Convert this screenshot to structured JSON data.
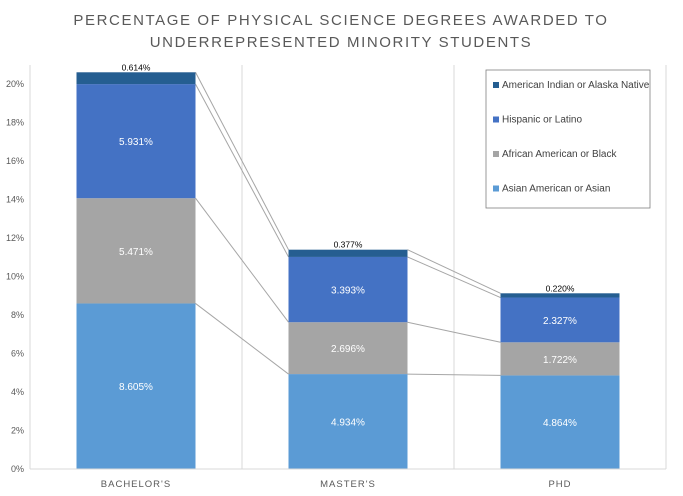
{
  "chart_data": {
    "type": "bar",
    "stacked": true,
    "title_lines": [
      "PERCENTAGE OF PHYSICAL SCIENCE DEGREES AWARDED TO",
      "UNDERREPRESENTED MINORITY STUDENTS"
    ],
    "categories": [
      "BACHELOR'S",
      "MASTER'S",
      "PHD"
    ],
    "y_ticks": [
      "0%",
      "2%",
      "4%",
      "6%",
      "8%",
      "10%",
      "12%",
      "14%",
      "16%",
      "18%",
      "20%"
    ],
    "ylim": [
      0,
      21
    ],
    "grid": "vertical category separators",
    "legend_position": "top-right",
    "series": [
      {
        "name": "Asian American or Asian",
        "color": "#5b9bd5",
        "values": [
          8.605,
          4.934,
          4.864
        ],
        "labels": [
          "8.605%",
          "4.934%",
          "4.864%"
        ]
      },
      {
        "name": "African American or Black",
        "color": "#a5a5a5",
        "values": [
          5.471,
          2.696,
          1.722
        ],
        "labels": [
          "5.471%",
          "2.696%",
          "1.722%"
        ]
      },
      {
        "name": "Hispanic or Latino",
        "color": "#4472c4",
        "values": [
          5.931,
          3.393,
          2.327
        ],
        "labels": [
          "5.931%",
          "3.393%",
          "2.327%"
        ]
      },
      {
        "name": "American Indian or Alaska Native",
        "color": "#255e91",
        "values": [
          0.614,
          0.377,
          0.22
        ],
        "labels": [
          "0.614%",
          "0.377%",
          "0.220%"
        ]
      }
    ],
    "legend_order": [
      "American Indian or Alaska Native",
      "Hispanic or Latino",
      "African American or Black",
      "Asian American or Asian"
    ],
    "series_line_color": "#a6a6a6",
    "axis_color": "#d9d9d9"
  }
}
